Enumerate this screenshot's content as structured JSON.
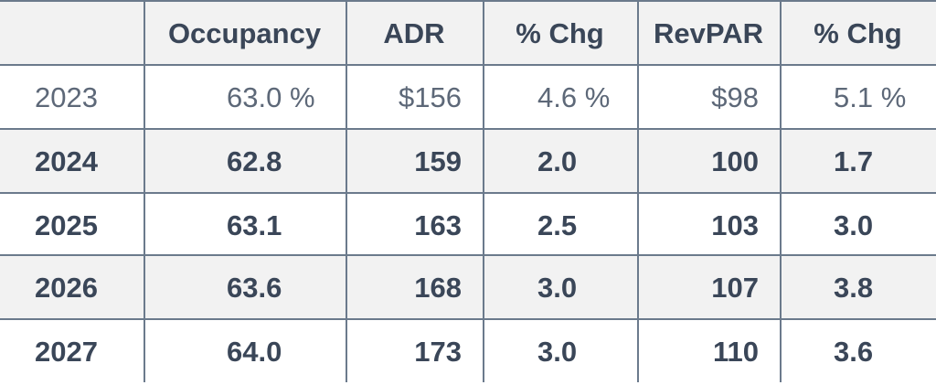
{
  "table": {
    "header": [
      "",
      "Occupancy",
      "ADR",
      "% Chg",
      "RevPAR",
      "% Chg"
    ],
    "rows": [
      [
        "2023",
        "63.0 %",
        "$156",
        "4.6 %",
        "$98",
        "5.1 %"
      ],
      [
        "2024",
        "62.8",
        "159",
        "2.0",
        "100",
        "1.7"
      ],
      [
        "2025",
        "63.1",
        "163",
        "2.5",
        "103",
        "3.0"
      ],
      [
        "2026",
        "63.6",
        "168",
        "3.0",
        "107",
        "3.8"
      ],
      [
        "2027",
        "64.0",
        "173",
        "3.0",
        "110",
        "3.6"
      ]
    ]
  }
}
